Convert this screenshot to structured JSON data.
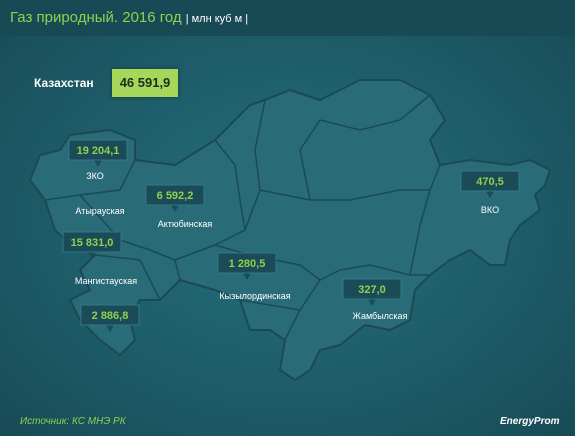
{
  "header": {
    "title": "Газ природный. 2016 год",
    "unit": "| млн куб м |"
  },
  "total": {
    "label": "Казахстан",
    "value": "46 591,9"
  },
  "regions": [
    {
      "label": "ЗКО",
      "value": "19 204,1"
    },
    {
      "label": "Атырауская",
      "value": "15 831,0"
    },
    {
      "label": "Актюбинская",
      "value": "6 592,2"
    },
    {
      "label": "Мангистауская",
      "value": "2 886,8"
    },
    {
      "label": "Кызылординская",
      "value": "1 280,5"
    },
    {
      "label": "Жамбылская",
      "value": "327,0"
    },
    {
      "label": "ВКО",
      "value": "470,5"
    }
  ],
  "footer": {
    "source": "Источник: КС МНЭ РК",
    "logo": "EnergyProm"
  }
}
